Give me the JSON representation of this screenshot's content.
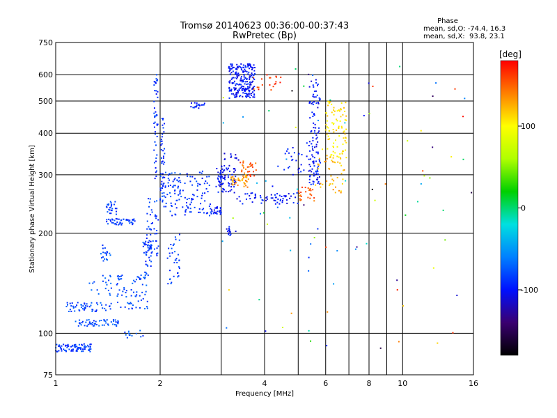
{
  "chart_data": {
    "type": "scatter",
    "title": "Tromsø 20140623 00:36:00-00:37:43",
    "subtitle": "RwPretec (Bp)",
    "xlabel": "Frequency [MHz]",
    "ylabel": "Stationary phase Virtual Height [km]",
    "x_scale": "log",
    "y_scale": "log",
    "xlim": [
      1,
      16
    ],
    "ylim": [
      75,
      750
    ],
    "x_ticks": [
      1,
      2,
      4,
      6,
      8,
      10,
      16
    ],
    "x_tick_labels": [
      "1",
      "2",
      "4",
      "6",
      "8",
      "10",
      "16"
    ],
    "x_minor_gridlines": [
      3,
      5,
      7,
      9
    ],
    "y_ticks": [
      75,
      100,
      200,
      300,
      400,
      500,
      600,
      750
    ],
    "y_tick_labels": [
      "75",
      "100",
      "200",
      "300",
      "400",
      "500",
      "600",
      "750"
    ],
    "grid": true,
    "phase_stats": {
      "heading": "Phase",
      "line_o": "mean, sd,O: -74.4, 16.3",
      "line_x": "mean, sd,X:  93.8, 23.1"
    },
    "colorbar": {
      "label": "[deg]",
      "range": [
        -180,
        180
      ],
      "ticks": [
        100,
        0,
        -100
      ],
      "tick_labels": [
        "100",
        "0",
        "-100"
      ],
      "colors": [
        "#000000",
        "#3a0070",
        "#0010ff",
        "#0080ff",
        "#00e0e0",
        "#00d000",
        "#b0ff00",
        "#ffff00",
        "#ff8000",
        "#ff0000"
      ]
    },
    "series": [
      {
        "clusters": [
          {
            "f": [
              1.0,
              1.28
            ],
            "h": [
              88,
              93
            ],
            "phase": -85,
            "n": 80
          },
          {
            "f": [
              1.07,
              1.45
            ],
            "h": [
              116,
              124
            ],
            "phase": -80,
            "n": 55
          },
          {
            "f": [
              1.14,
              1.53
            ],
            "h": [
              105,
              110
            ],
            "phase": -78,
            "n": 55
          },
          {
            "f": [
              1.25,
              1.45
            ],
            "h": [
              130,
              150
            ],
            "phase": -78,
            "n": 20
          },
          {
            "f": [
              1.35,
              1.45
            ],
            "h": [
              165,
              185
            ],
            "phase": -78,
            "n": 18
          },
          {
            "f": [
              1.4,
              1.7
            ],
            "h": [
              212,
              222
            ],
            "phase": -85,
            "n": 45
          },
          {
            "f": [
              1.4,
              1.5
            ],
            "h": [
              228,
              255
            ],
            "phase": -85,
            "n": 25
          },
          {
            "f": [
              1.5,
              1.85
            ],
            "h": [
              118,
              150
            ],
            "phase": -80,
            "n": 70
          },
          {
            "f": [
              1.55,
              1.8
            ],
            "h": [
              96,
              102
            ],
            "phase": -80,
            "n": 12
          },
          {
            "f": [
              1.78,
              1.9
            ],
            "h": [
              150,
              190
            ],
            "phase": -85,
            "n": 35
          },
          {
            "f": [
              1.82,
              1.98
            ],
            "h": [
              170,
              260
            ],
            "phase": -85,
            "n": 50
          },
          {
            "f": [
              1.92,
              1.97
            ],
            "h": [
              290,
              600
            ],
            "phase": -90,
            "n": 45
          },
          {
            "f": [
              2.0,
              2.06
            ],
            "h": [
              240,
              460
            ],
            "phase": -90,
            "n": 50
          },
          {
            "f": [
              2.05,
              2.35
            ],
            "h": [
              225,
              305
            ],
            "phase": -85,
            "n": 60
          },
          {
            "f": [
              2.1,
              2.28
            ],
            "h": [
              140,
              200
            ],
            "phase": -82,
            "n": 35
          },
          {
            "f": [
              2.35,
              2.8
            ],
            "h": [
              225,
              310
            ],
            "phase": -90,
            "n": 70
          },
          {
            "f": [
              2.45,
              2.7
            ],
            "h": [
              475,
              495
            ],
            "phase": -95,
            "n": 20
          },
          {
            "f": [
              2.8,
              3.0
            ],
            "h": [
              228,
              240
            ],
            "phase": -100,
            "n": 25
          },
          {
            "f": [
              2.9,
              3.3
            ],
            "h": [
              265,
              320
            ],
            "phase": -100,
            "n": 80
          },
          {
            "f": [
              3.1,
              3.2
            ],
            "h": [
              195,
              212
            ],
            "phase": -105,
            "n": 15
          },
          {
            "f": [
              3.05,
              3.4
            ],
            "h": [
              330,
              350
            ],
            "phase": -105,
            "n": 12
          },
          {
            "f": [
              3.2,
              3.6
            ],
            "h": [
              275,
              300
            ],
            "phase": 130,
            "n": 40
          },
          {
            "f": [
              3.4,
              3.8
            ],
            "h": [
              295,
              330
            ],
            "phase": 150,
            "n": 30
          },
          {
            "f": [
              3.15,
              3.75
            ],
            "h": [
              510,
              650
            ],
            "phase": -100,
            "n": 220
          },
          {
            "f": [
              3.7,
              4.5
            ],
            "h": [
              535,
              600
            ],
            "phase": 160,
            "n": 20
          },
          {
            "f": [
              3.3,
              5.0
            ],
            "h": [
              245,
              265
            ],
            "phase": -100,
            "n": 60
          },
          {
            "f": [
              5.0,
              5.6
            ],
            "h": [
              250,
              275
            ],
            "phase": 150,
            "n": 25
          },
          {
            "f": [
              4.5,
              5.3
            ],
            "h": [
              300,
              380
            ],
            "phase": -95,
            "n": 25
          },
          {
            "f": [
              5.35,
              5.8
            ],
            "h": [
              280,
              580
            ],
            "phase": -100,
            "n": 110
          },
          {
            "f": [
              5.6,
              6.8
            ],
            "h": [
              265,
              340
            ],
            "phase": 125,
            "n": 40
          },
          {
            "f": [
              6.0,
              6.9
            ],
            "h": [
              330,
              500
            ],
            "phase": 110,
            "n": 90
          },
          {
            "f": [
              3.0,
              16.0
            ],
            "h": [
              85,
              640
            ],
            "phase": 0,
            "n": 90
          }
        ]
      }
    ]
  }
}
